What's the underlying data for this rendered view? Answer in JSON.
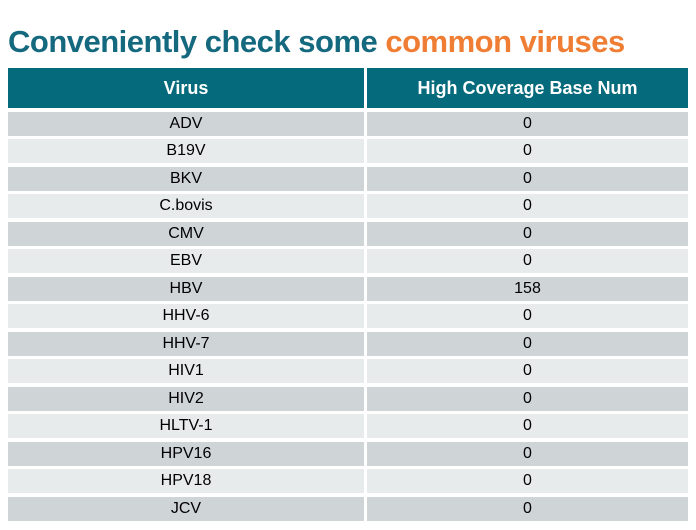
{
  "title": {
    "part1": "Conveniently check some ",
    "part2": "common viruses"
  },
  "colors": {
    "title_teal": "#15697e",
    "title_orange": "#ef7d33",
    "header_bg": "#056a7b",
    "header_text": "#ffffff",
    "row_dark": "#cfd4d7",
    "row_light": "#e8ebec",
    "cell_text": "#000000"
  },
  "table": {
    "columns": [
      "Virus",
      "High Coverage Base Num"
    ],
    "rows": [
      {
        "virus": "ADV",
        "value": "0"
      },
      {
        "virus": "B19V",
        "value": "0"
      },
      {
        "virus": "BKV",
        "value": "0"
      },
      {
        "virus": "C.bovis",
        "value": "0"
      },
      {
        "virus": "CMV",
        "value": "0"
      },
      {
        "virus": "EBV",
        "value": "0"
      },
      {
        "virus": "HBV",
        "value": "158"
      },
      {
        "virus": "HHV-6",
        "value": "0"
      },
      {
        "virus": "HHV-7",
        "value": "0"
      },
      {
        "virus": "HIV1",
        "value": "0"
      },
      {
        "virus": "HIV2",
        "value": "0"
      },
      {
        "virus": "HLTV-1",
        "value": "0"
      },
      {
        "virus": "HPV16",
        "value": "0"
      },
      {
        "virus": "HPV18",
        "value": "0"
      },
      {
        "virus": "JCV",
        "value": "0"
      }
    ]
  }
}
